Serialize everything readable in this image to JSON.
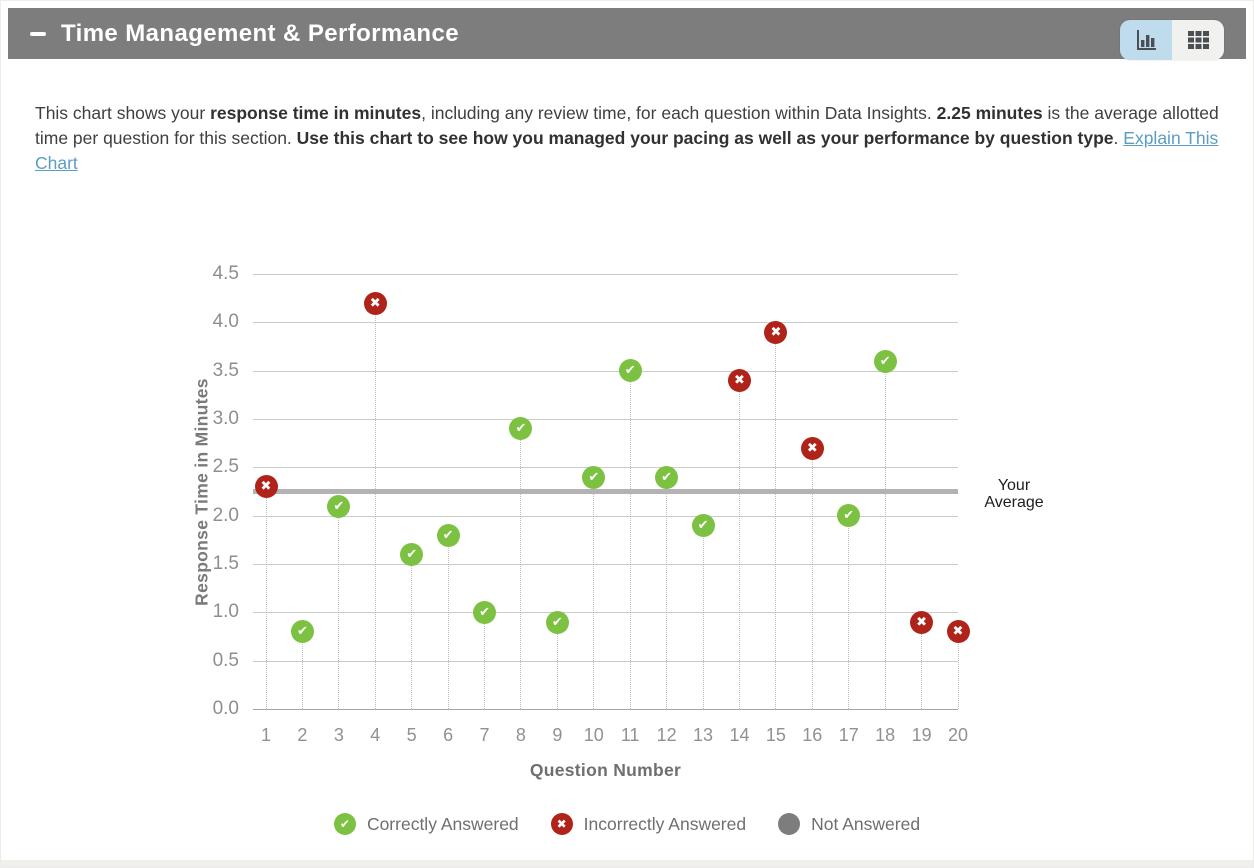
{
  "header": {
    "title": "Time Management & Performance",
    "icons": {
      "collapse": "minus-icon",
      "chart_view": "bar-chart-icon",
      "table_view": "table-icon"
    }
  },
  "colors": {
    "header_bg": "#7d7d7d",
    "toggle_active_bg": "#bfdcec",
    "toggle_inactive_bg": "#f1f1ef",
    "link": "#5b9dc2"
  },
  "description": {
    "segments": [
      {
        "text": "This chart shows your ",
        "bold": false
      },
      {
        "text": "response time in minutes",
        "bold": true
      },
      {
        "text": ", including any review time, for each question within Data Insights. ",
        "bold": false
      },
      {
        "text": "2.25 minutes",
        "bold": true
      },
      {
        "text": " is the average allotted time per question for this section. ",
        "bold": false
      },
      {
        "text": "Use this chart to see how you managed your pacing as well as your performance by question type",
        "bold": true
      },
      {
        "text": ". ",
        "bold": false
      }
    ],
    "link_label": "Explain This Chart"
  },
  "chart_data": {
    "type": "scatter",
    "xlabel": "Question Number",
    "ylabel": "Response Time in Minutes",
    "x": [
      1,
      2,
      3,
      4,
      5,
      6,
      7,
      8,
      9,
      10,
      11,
      12,
      13,
      14,
      15,
      16,
      17,
      18,
      19,
      20
    ],
    "ylim": [
      0,
      4.5
    ],
    "yticks": [
      0.0,
      0.5,
      1.0,
      1.5,
      2.0,
      2.5,
      3.0,
      3.5,
      4.0,
      4.5
    ],
    "grid": true,
    "average_line": {
      "value": 2.25,
      "label": "Your Average"
    },
    "points": [
      {
        "q": 1,
        "minutes": 2.3,
        "status": "incorrect"
      },
      {
        "q": 2,
        "minutes": 0.8,
        "status": "correct"
      },
      {
        "q": 3,
        "minutes": 2.1,
        "status": "correct"
      },
      {
        "q": 4,
        "minutes": 4.2,
        "status": "incorrect"
      },
      {
        "q": 5,
        "minutes": 1.6,
        "status": "correct"
      },
      {
        "q": 6,
        "minutes": 1.8,
        "status": "correct"
      },
      {
        "q": 7,
        "minutes": 1.0,
        "status": "correct"
      },
      {
        "q": 8,
        "minutes": 2.9,
        "status": "correct"
      },
      {
        "q": 9,
        "minutes": 0.9,
        "status": "correct"
      },
      {
        "q": 10,
        "minutes": 2.4,
        "status": "correct"
      },
      {
        "q": 11,
        "minutes": 3.5,
        "status": "correct"
      },
      {
        "q": 12,
        "minutes": 2.4,
        "status": "correct"
      },
      {
        "q": 13,
        "minutes": 1.9,
        "status": "correct"
      },
      {
        "q": 14,
        "minutes": 3.4,
        "status": "incorrect"
      },
      {
        "q": 15,
        "minutes": 3.9,
        "status": "incorrect"
      },
      {
        "q": 16,
        "minutes": 2.7,
        "status": "incorrect"
      },
      {
        "q": 17,
        "minutes": 2.0,
        "status": "correct"
      },
      {
        "q": 18,
        "minutes": 3.6,
        "status": "correct"
      },
      {
        "q": 19,
        "minutes": 0.9,
        "status": "incorrect"
      },
      {
        "q": 20,
        "minutes": 0.8,
        "status": "incorrect"
      }
    ],
    "colors": {
      "correct": "#7cc142",
      "incorrect": "#b0231a",
      "not_answered": "#7d7d7d"
    },
    "legend": [
      {
        "label": "Correctly Answered",
        "status": "correct"
      },
      {
        "label": "Incorrectly Answered",
        "status": "incorrect"
      },
      {
        "label": "Not Answered",
        "status": "not_answered"
      }
    ],
    "legend_position": "bottom"
  }
}
